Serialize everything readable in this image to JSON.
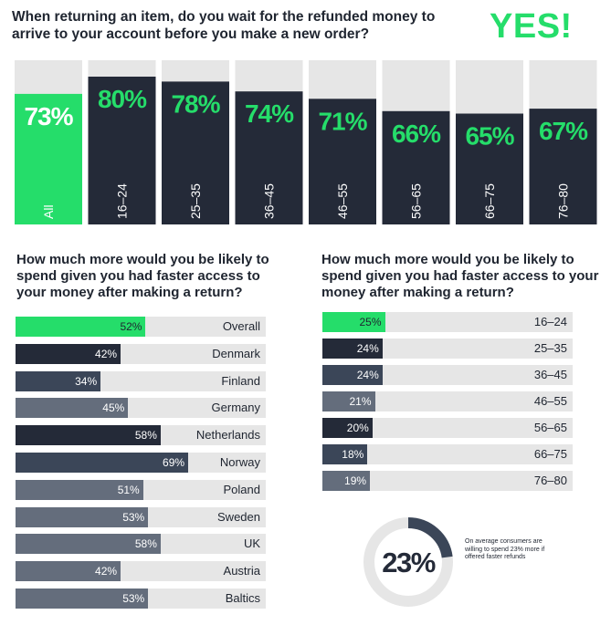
{
  "top": {
    "question": "When returning an item, do you wait for the refunded money to arrive to your account before you make a new order?",
    "answer": "YES!"
  },
  "left_question": "How much more would you be likely to spend given you had faster access to your money after making a return?",
  "right_question": "How much more would you be likely to spend given you had faster access to your money after making a return?",
  "donut": {
    "value_label": "23%",
    "value": 23,
    "note": "On average consumers are willing to spend 23% more if offered faster refunds"
  },
  "colors": {
    "green": "#25dd6a",
    "navy": "#242a38",
    "slate": "#3b4658",
    "grey_slate": "#646d7c",
    "track": "#e6e6e6"
  },
  "chart_data": [
    {
      "type": "bar",
      "orientation": "vertical",
      "categories": [
        "All",
        "16–24",
        "25–35",
        "36–45",
        "46–55",
        "56–65",
        "66–75",
        "76–80"
      ],
      "values": [
        73,
        80,
        78,
        74,
        71,
        66,
        65,
        67
      ],
      "labels": [
        "73%",
        "80%",
        "78%",
        "74%",
        "71%",
        "66%",
        "65%",
        "67%"
      ],
      "ylim": [
        0,
        100
      ]
    },
    {
      "type": "bar",
      "orientation": "horizontal",
      "categories": [
        "Overall",
        "Denmark",
        "Finland",
        "Germany",
        "Netherlands",
        "Norway",
        "Poland",
        "Sweden",
        "UK",
        "Austria",
        "Baltics"
      ],
      "values": [
        52,
        42,
        34,
        45,
        58,
        69,
        51,
        53,
        58,
        42,
        53
      ],
      "labels": [
        "52%",
        "42%",
        "34%",
        "45%",
        "58%",
        "69%",
        "51%",
        "53%",
        "58%",
        "42%",
        "53%"
      ],
      "xlim": [
        0,
        100
      ]
    },
    {
      "type": "bar",
      "orientation": "horizontal",
      "categories": [
        "16–24",
        "25–35",
        "36–45",
        "46–55",
        "56–65",
        "66–75",
        "76–80"
      ],
      "values": [
        25,
        24,
        24,
        21,
        20,
        18,
        19
      ],
      "labels": [
        "25%",
        "24%",
        "24%",
        "21%",
        "20%",
        "18%",
        "19%"
      ],
      "xlim": [
        0,
        100
      ]
    }
  ]
}
